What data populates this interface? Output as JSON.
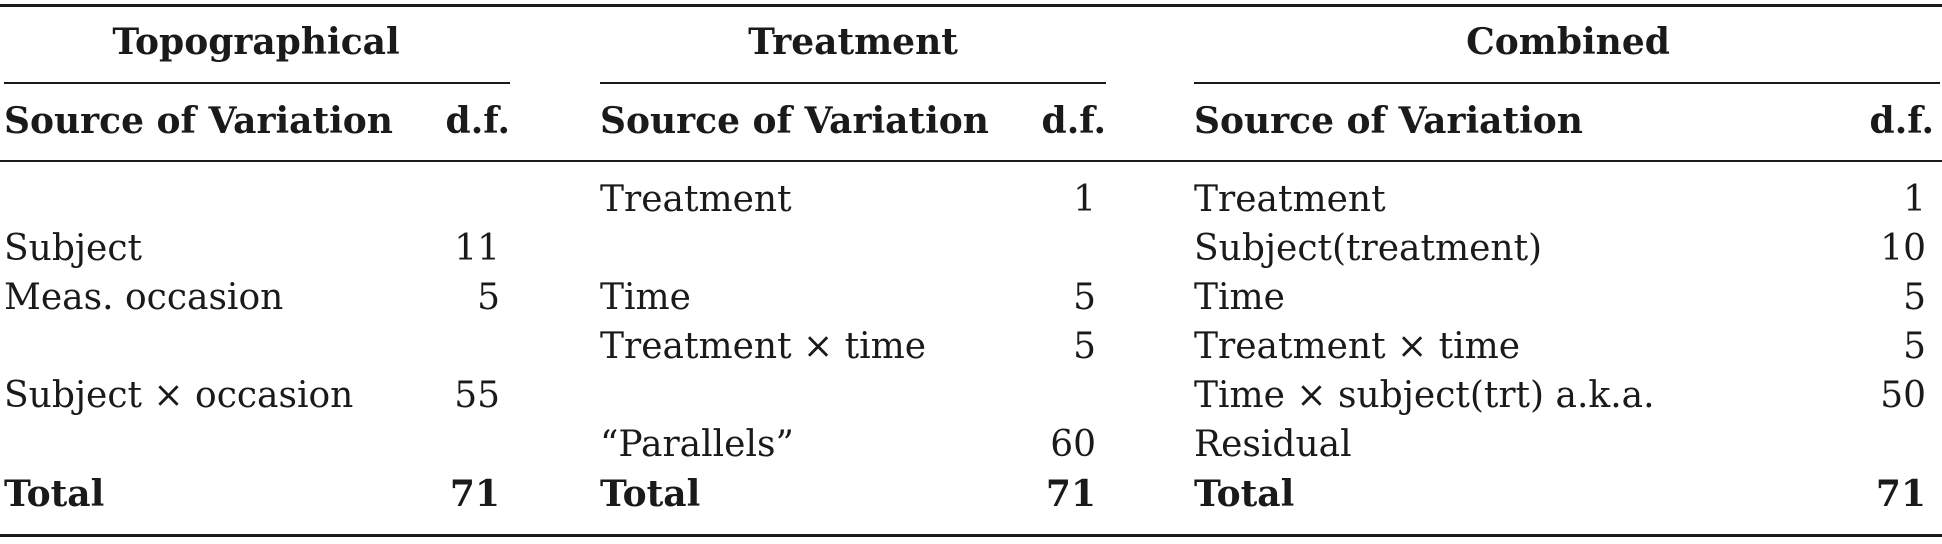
{
  "groups": [
    {
      "title": "Topographical",
      "col_source": "Source of Variation",
      "col_df": "d.f.",
      "rows": [
        {
          "source": "",
          "df": ""
        },
        {
          "source": "Subject",
          "df": "11"
        },
        {
          "source": "Meas. occasion",
          "df": "5"
        },
        {
          "source": "",
          "df": ""
        },
        {
          "source": "Subject × occasion",
          "df": "55"
        },
        {
          "source": "",
          "df": ""
        }
      ],
      "total_label": "Total",
      "total_df": "71"
    },
    {
      "title": "Treatment",
      "col_source": "Source of Variation",
      "col_df": "d.f.",
      "rows": [
        {
          "source": "Treatment",
          "df": "1"
        },
        {
          "source": "",
          "df": ""
        },
        {
          "source": "Time",
          "df": "5"
        },
        {
          "source": "Treatment × time",
          "df": "5"
        },
        {
          "source": "",
          "df": ""
        },
        {
          "source": "“Parallels”",
          "df": "60"
        }
      ],
      "total_label": "Total",
      "total_df": "71"
    },
    {
      "title": "Combined",
      "col_source": "Source of Variation",
      "col_df": "d.f.",
      "rows": [
        {
          "source": "Treatment",
          "df": "1"
        },
        {
          "source": "Subject(treatment)",
          "df": "10"
        },
        {
          "source": "Time",
          "df": "5"
        },
        {
          "source": "Treatment × time",
          "df": "5"
        },
        {
          "source": "Time × subject(trt) a.k.a.",
          "df": "50"
        },
        {
          "source": "Residual",
          "df": ""
        }
      ],
      "total_label": "Total",
      "total_df": "71"
    }
  ]
}
